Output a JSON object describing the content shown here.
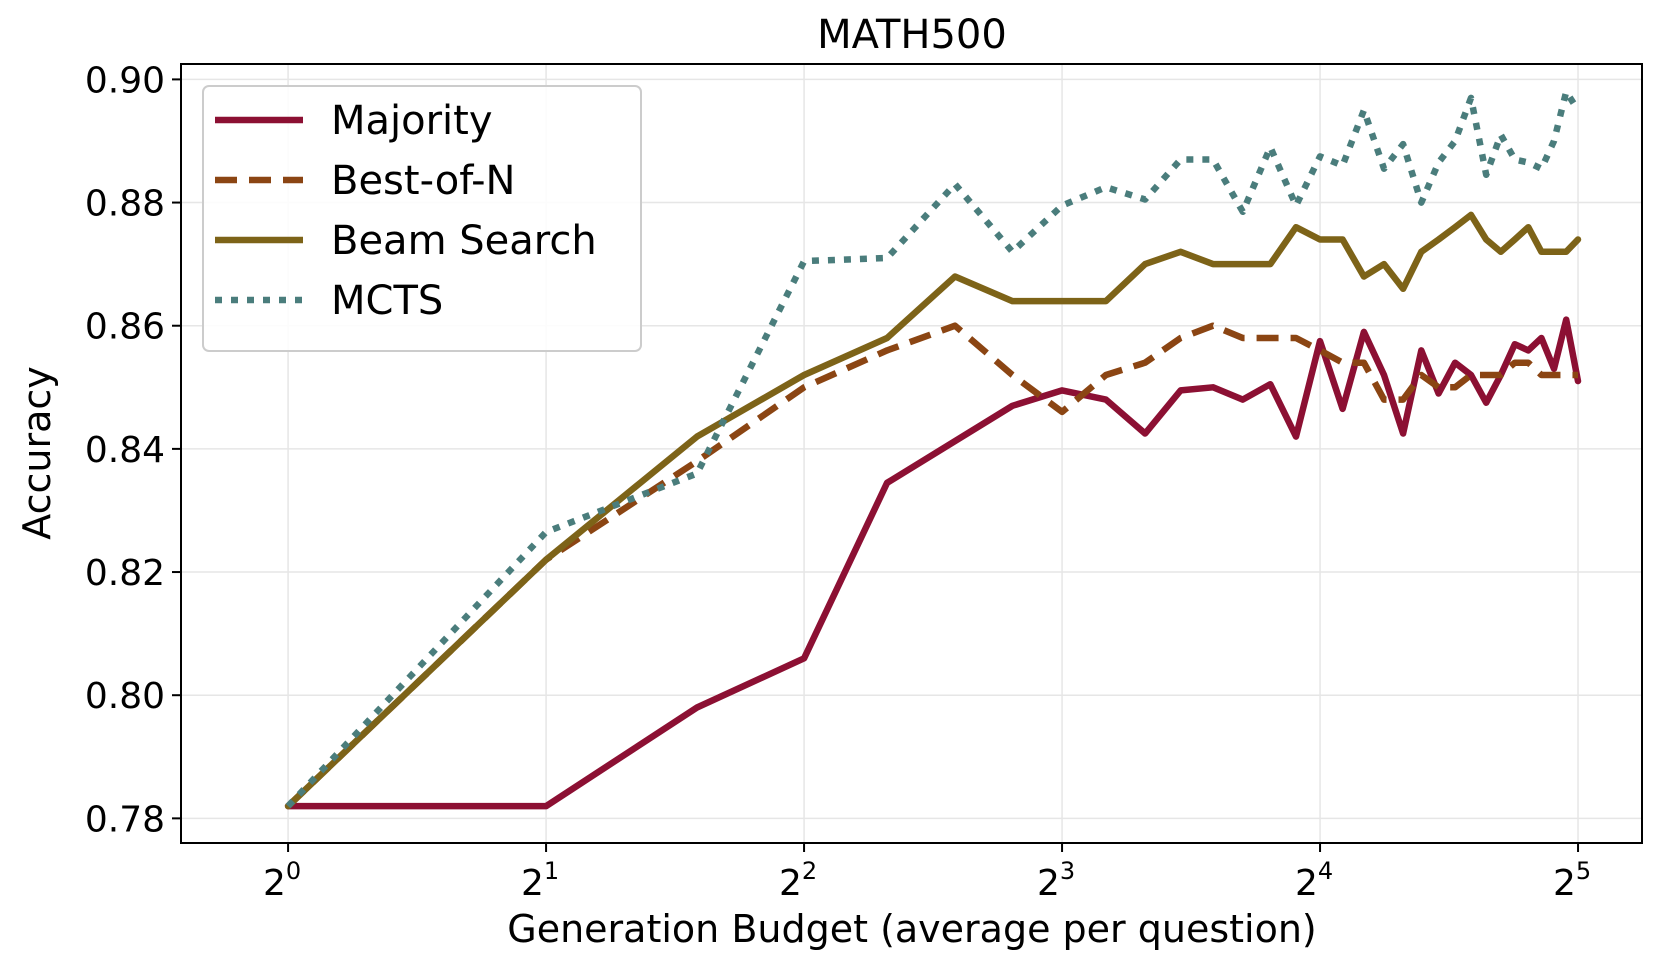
{
  "chart_data": {
    "type": "line",
    "title": "MATH500",
    "xlabel": "Generation Budget (average per question)",
    "ylabel": "Accuracy",
    "xscale": "log2",
    "xlim": [
      0.75,
      38
    ],
    "ylim": [
      0.776,
      0.9025
    ],
    "grid": true,
    "legend_position": "top-left",
    "x_ticks": [
      {
        "value": 1,
        "base": "2",
        "exp": "0"
      },
      {
        "value": 2,
        "base": "2",
        "exp": "1"
      },
      {
        "value": 4,
        "base": "2",
        "exp": "2"
      },
      {
        "value": 8,
        "base": "2",
        "exp": "3"
      },
      {
        "value": 16,
        "base": "2",
        "exp": "4"
      },
      {
        "value": 32,
        "base": "2",
        "exp": "5"
      }
    ],
    "y_ticks": [
      {
        "value": 0.78,
        "label": "0.78"
      },
      {
        "value": 0.8,
        "label": "0.80"
      },
      {
        "value": 0.82,
        "label": "0.82"
      },
      {
        "value": 0.84,
        "label": "0.84"
      },
      {
        "value": 0.86,
        "label": "0.86"
      },
      {
        "value": 0.88,
        "label": "0.88"
      },
      {
        "value": 0.9,
        "label": "0.90"
      }
    ],
    "series": [
      {
        "name": "Majority",
        "color": "#8c1033",
        "style": "solid",
        "x": [
          1,
          2,
          3,
          4,
          5,
          7,
          8,
          9,
          10,
          11,
          12,
          13,
          14,
          15,
          16,
          17,
          18,
          19,
          20,
          21,
          22,
          23,
          24,
          25,
          26,
          27,
          28,
          29,
          30,
          31,
          32
        ],
        "y": [
          0.782,
          0.782,
          0.798,
          0.806,
          0.8345,
          0.847,
          0.8495,
          0.848,
          0.8425,
          0.8495,
          0.85,
          0.848,
          0.8505,
          0.842,
          0.8575,
          0.8465,
          0.859,
          0.852,
          0.8425,
          0.856,
          0.849,
          0.854,
          0.852,
          0.8475,
          0.852,
          0.857,
          0.856,
          0.858,
          0.853,
          0.861,
          0.851
        ]
      },
      {
        "name": "Best-of-N",
        "color": "#8b4513",
        "style": "dashed",
        "x": [
          1,
          2,
          3,
          4,
          5,
          6,
          7,
          8,
          9,
          10,
          11,
          12,
          13,
          14,
          15,
          16,
          17,
          18,
          19,
          20,
          21,
          22,
          23,
          24,
          25,
          26,
          27,
          28,
          29,
          30,
          31,
          32
        ],
        "y": [
          0.782,
          0.822,
          0.838,
          0.85,
          0.856,
          0.86,
          0.852,
          0.846,
          0.852,
          0.854,
          0.858,
          0.86,
          0.858,
          0.858,
          0.858,
          0.856,
          0.854,
          0.854,
          0.848,
          0.848,
          0.852,
          0.85,
          0.85,
          0.852,
          0.852,
          0.852,
          0.854,
          0.854,
          0.852,
          0.852,
          0.852,
          0.852
        ]
      },
      {
        "name": "Beam Search",
        "color": "#7d6318",
        "style": "solid",
        "x": [
          1,
          2,
          3,
          4,
          5,
          6,
          7,
          8,
          9,
          10,
          11,
          12,
          13,
          14,
          15,
          16,
          17,
          18,
          19,
          20,
          21,
          22,
          23,
          24,
          25,
          26,
          27,
          28,
          29,
          30,
          31,
          32
        ],
        "y": [
          0.782,
          0.822,
          0.842,
          0.852,
          0.858,
          0.868,
          0.864,
          0.864,
          0.864,
          0.87,
          0.872,
          0.87,
          0.87,
          0.87,
          0.876,
          0.874,
          0.874,
          0.868,
          0.87,
          0.866,
          0.872,
          0.874,
          0.876,
          0.878,
          0.874,
          0.872,
          0.874,
          0.876,
          0.872,
          0.872,
          0.872,
          0.874
        ]
      },
      {
        "name": "MCTS",
        "color": "#4a7d7c",
        "style": "dotted",
        "x": [
          1,
          2,
          3,
          4,
          5,
          6,
          7,
          8,
          9,
          10,
          11,
          12,
          13,
          14,
          15,
          16,
          17,
          18,
          19,
          20,
          21,
          22,
          23,
          24,
          25,
          26,
          27,
          28,
          29,
          30,
          31,
          32
        ],
        "y": [
          0.782,
          0.8265,
          0.836,
          0.8705,
          0.871,
          0.883,
          0.872,
          0.8795,
          0.8825,
          0.8805,
          0.887,
          0.887,
          0.8785,
          0.889,
          0.8795,
          0.8875,
          0.886,
          0.895,
          0.8855,
          0.8895,
          0.88,
          0.8865,
          0.89,
          0.897,
          0.8845,
          0.891,
          0.887,
          0.8865,
          0.8855,
          0.89,
          0.898,
          0.895
        ]
      }
    ]
  }
}
